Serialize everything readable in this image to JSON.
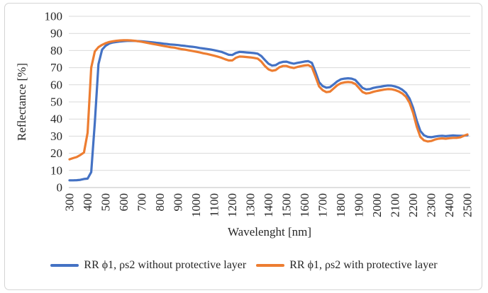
{
  "figure": {
    "background": "#ffffff",
    "border_color": "#d4d4d4"
  },
  "chart_data": {
    "type": "line",
    "title": "",
    "xlabel": "Wavelenght [nm]",
    "ylabel": "Reflectance [%]",
    "xlim": [
      300,
      2500
    ],
    "ylim": [
      0,
      100
    ],
    "x_ticks": [
      300,
      400,
      500,
      600,
      700,
      800,
      900,
      1000,
      1100,
      1200,
      1300,
      1400,
      1500,
      1600,
      1700,
      1800,
      1900,
      2000,
      2100,
      2200,
      2300,
      2400,
      2500
    ],
    "y_ticks": [
      0,
      10,
      20,
      30,
      40,
      50,
      60,
      70,
      80,
      90,
      100
    ],
    "grid": "horizontal",
    "gridline_color": "#d9d9d9",
    "axis_line_color": "#bfbfbf",
    "legend_position": "bottom",
    "x": [
      300,
      320,
      340,
      360,
      380,
      400,
      420,
      440,
      460,
      480,
      500,
      520,
      540,
      560,
      580,
      600,
      620,
      640,
      660,
      680,
      700,
      720,
      740,
      760,
      780,
      800,
      820,
      840,
      860,
      880,
      900,
      920,
      940,
      960,
      980,
      1000,
      1020,
      1040,
      1060,
      1080,
      1100,
      1120,
      1140,
      1160,
      1180,
      1200,
      1220,
      1240,
      1260,
      1280,
      1300,
      1320,
      1340,
      1360,
      1380,
      1400,
      1420,
      1440,
      1460,
      1480,
      1500,
      1520,
      1540,
      1560,
      1580,
      1600,
      1620,
      1640,
      1660,
      1680,
      1700,
      1720,
      1740,
      1760,
      1780,
      1800,
      1820,
      1840,
      1860,
      1880,
      1900,
      1920,
      1940,
      1960,
      1980,
      2000,
      2020,
      2040,
      2060,
      2080,
      2100,
      2120,
      2140,
      2160,
      2180,
      2200,
      2220,
      2240,
      2260,
      2280,
      2300,
      2320,
      2340,
      2360,
      2380,
      2400,
      2420,
      2440,
      2460,
      2480,
      2500
    ],
    "series": [
      {
        "name": "RR ϕ1, ρs2 without protective layer",
        "color": "#4472C4",
        "values": [
          4.2,
          4.2,
          4.3,
          4.5,
          5.0,
          5.2,
          9,
          38,
          72,
          80.5,
          82.8,
          84.1,
          84.7,
          85.0,
          85.3,
          85.5,
          85.6,
          85.7,
          85.6,
          85.5,
          85.4,
          85.2,
          85.0,
          84.8,
          84.5,
          84.3,
          84.0,
          83.8,
          83.5,
          83.4,
          83.2,
          82.9,
          82.7,
          82.4,
          82.2,
          81.9,
          81.5,
          81.2,
          80.9,
          80.6,
          80.2,
          79.7,
          79.2,
          78.4,
          77.5,
          77.4,
          78.6,
          79.2,
          79.1,
          78.9,
          78.7,
          78.5,
          78.2,
          76.8,
          74.5,
          72.3,
          71.2,
          71.5,
          72.8,
          73.4,
          73.5,
          72.8,
          72.3,
          72.8,
          73.2,
          73.6,
          73.8,
          72.8,
          67.5,
          61.5,
          59.2,
          58.3,
          58.6,
          60.2,
          62.0,
          63.2,
          63.6,
          63.8,
          63.6,
          62.8,
          60.5,
          58.2,
          57.3,
          57.5,
          58.2,
          58.6,
          58.9,
          59.3,
          59.6,
          59.5,
          59.0,
          58.3,
          57.1,
          55.3,
          52.0,
          46.5,
          39.0,
          33.0,
          30.5,
          29.6,
          29.4,
          29.8,
          30.1,
          30.2,
          30.0,
          30.2,
          30.4,
          30.3,
          30.2,
          30.3,
          30.5
        ]
      },
      {
        "name": "RR ϕ1, ρs2 with protective layer",
        "color": "#ED7D31",
        "values": [
          16.5,
          17.2,
          17.8,
          19.0,
          20.5,
          32,
          70,
          79.5,
          82.0,
          83.3,
          84.3,
          85.0,
          85.4,
          85.7,
          85.9,
          86.0,
          86.0,
          85.9,
          85.7,
          85.4,
          85.1,
          84.7,
          84.3,
          83.9,
          83.5,
          83.1,
          82.7,
          82.3,
          81.9,
          81.7,
          81.2,
          80.8,
          80.5,
          80.1,
          79.7,
          79.3,
          78.9,
          78.4,
          78.0,
          77.5,
          77.0,
          76.4,
          75.8,
          74.9,
          74.2,
          74.2,
          75.8,
          76.5,
          76.4,
          76.2,
          76.0,
          75.7,
          75.3,
          73.6,
          71.0,
          69.0,
          68.2,
          68.6,
          70.2,
          71.0,
          71.0,
          70.2,
          69.8,
          70.4,
          70.9,
          71.3,
          71.5,
          70.3,
          64.8,
          59.0,
          56.8,
          55.7,
          56.0,
          57.8,
          59.7,
          60.9,
          61.4,
          61.6,
          61.4,
          60.5,
          58.2,
          55.8,
          54.9,
          55.2,
          55.9,
          56.4,
          56.8,
          57.2,
          57.5,
          57.4,
          56.9,
          56.1,
          54.9,
          53.0,
          49.5,
          43.5,
          35.5,
          29.5,
          27.5,
          26.9,
          27.2,
          28.0,
          28.5,
          28.7,
          28.5,
          28.8,
          29.0,
          29.0,
          29.3,
          30.2,
          31.0
        ]
      }
    ]
  }
}
